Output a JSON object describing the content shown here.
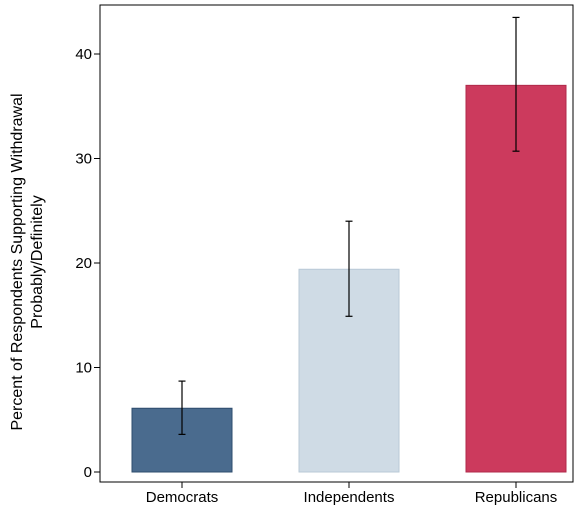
{
  "chart_data": {
    "type": "bar",
    "title": "",
    "xlabel": "",
    "ylabel_lines": [
      "Percent of Respondents Supporting Withdrawal",
      "Probably/Definitely"
    ],
    "ylim": [
      -1,
      45
    ],
    "yticks": [
      0,
      10,
      20,
      30,
      40
    ],
    "grid": false,
    "categories": [
      "Democrats",
      "Independents",
      "Republicans"
    ],
    "values": [
      6.1,
      19.4,
      37.0
    ],
    "error_low": [
      3.6,
      14.9,
      30.7
    ],
    "error_high": [
      8.7,
      24.0,
      43.5
    ],
    "colors": [
      "#4a6b8e",
      "#cfdbe5",
      "#cc3a5d"
    ],
    "edge_colors": [
      "#2e4c6d",
      "#b9c9d6",
      "#b02a4a"
    ]
  }
}
